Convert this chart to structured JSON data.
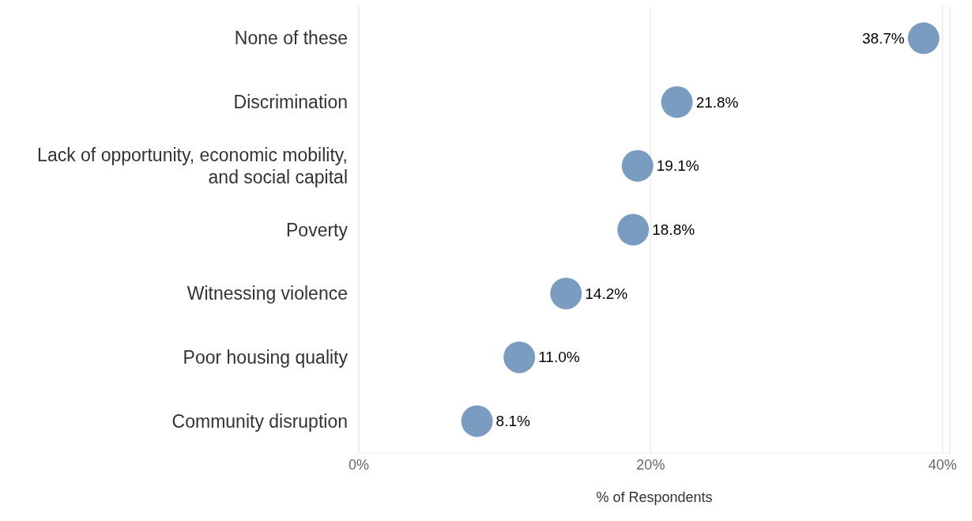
{
  "chart_data": {
    "type": "scatter",
    "orientation": "horizontal",
    "xlabel": "% of Respondents",
    "categories": [
      "None of these",
      "Discrimination",
      "Lack of opportunity, economic mobility, and social capital",
      "Poverty",
      "Witnessing violence",
      "Poor housing quality",
      "Community disruption"
    ],
    "values": [
      38.7,
      21.8,
      19.1,
      18.8,
      14.2,
      11.0,
      8.1
    ],
    "value_labels": [
      "38.7%",
      "21.8%",
      "19.1%",
      "18.8%",
      "14.2%",
      "11.0%",
      "8.1%"
    ],
    "color": "#7a9cc0",
    "marker": "circle",
    "xlim": [
      0,
      40.5
    ],
    "xticks": [
      {
        "value": 0,
        "label": "0%"
      },
      {
        "value": 20,
        "label": "20%"
      },
      {
        "value": 40,
        "label": "40%"
      }
    ],
    "grid": "x"
  }
}
